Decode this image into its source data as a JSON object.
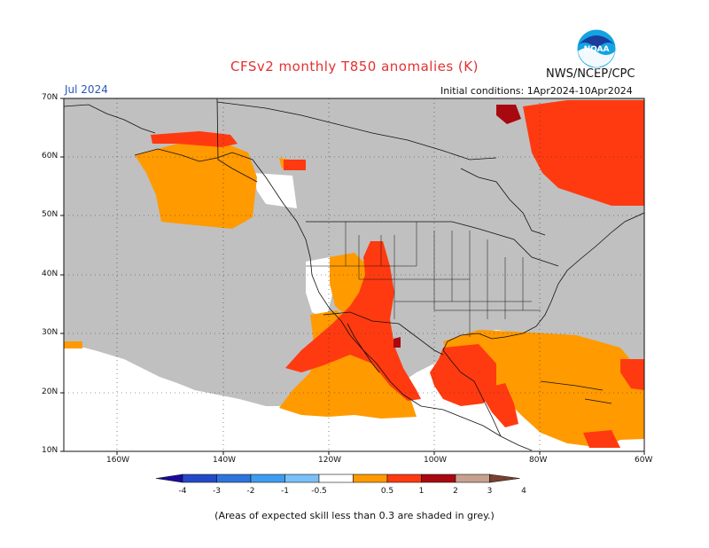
{
  "title": "CFSv2 monthly T850 anomalies (K)",
  "agency": "NWS/NCEP/CPC",
  "month": "Jul 2024",
  "initial_conditions": "Initial conditions: 1Apr2024-10Apr2024",
  "logo_text": "NOAA",
  "footnote": "(Areas of expected skill less than 0.3 are shaded in grey.)",
  "lat_labels": [
    "70N",
    "60N",
    "50N",
    "40N",
    "30N",
    "20N",
    "10N"
  ],
  "lon_labels": [
    "160W",
    "140W",
    "120W",
    "100W",
    "80W",
    "60W"
  ],
  "colorbar": {
    "tick_labels": [
      "-4",
      "-3",
      "-2",
      "-1",
      "-0.5",
      "0.5",
      "1",
      "2",
      "3",
      "4"
    ],
    "colors": [
      "#1c0a9c",
      "#2448c8",
      "#2f74dc",
      "#3e9cf0",
      "#7ac0f8",
      "#ffffff",
      "#ff9a00",
      "#ff3a10",
      "#a80810",
      "#c8a090",
      "#7a4030"
    ]
  },
  "colors": {
    "skill_grey": "#c0c0c0",
    "anom_0_5_1": "#ff9a00",
    "anom_1_2": "#ff3a10",
    "anom_2_3": "#a80810",
    "title_red": "#e53030",
    "month_blue": "#2a58b8"
  }
}
